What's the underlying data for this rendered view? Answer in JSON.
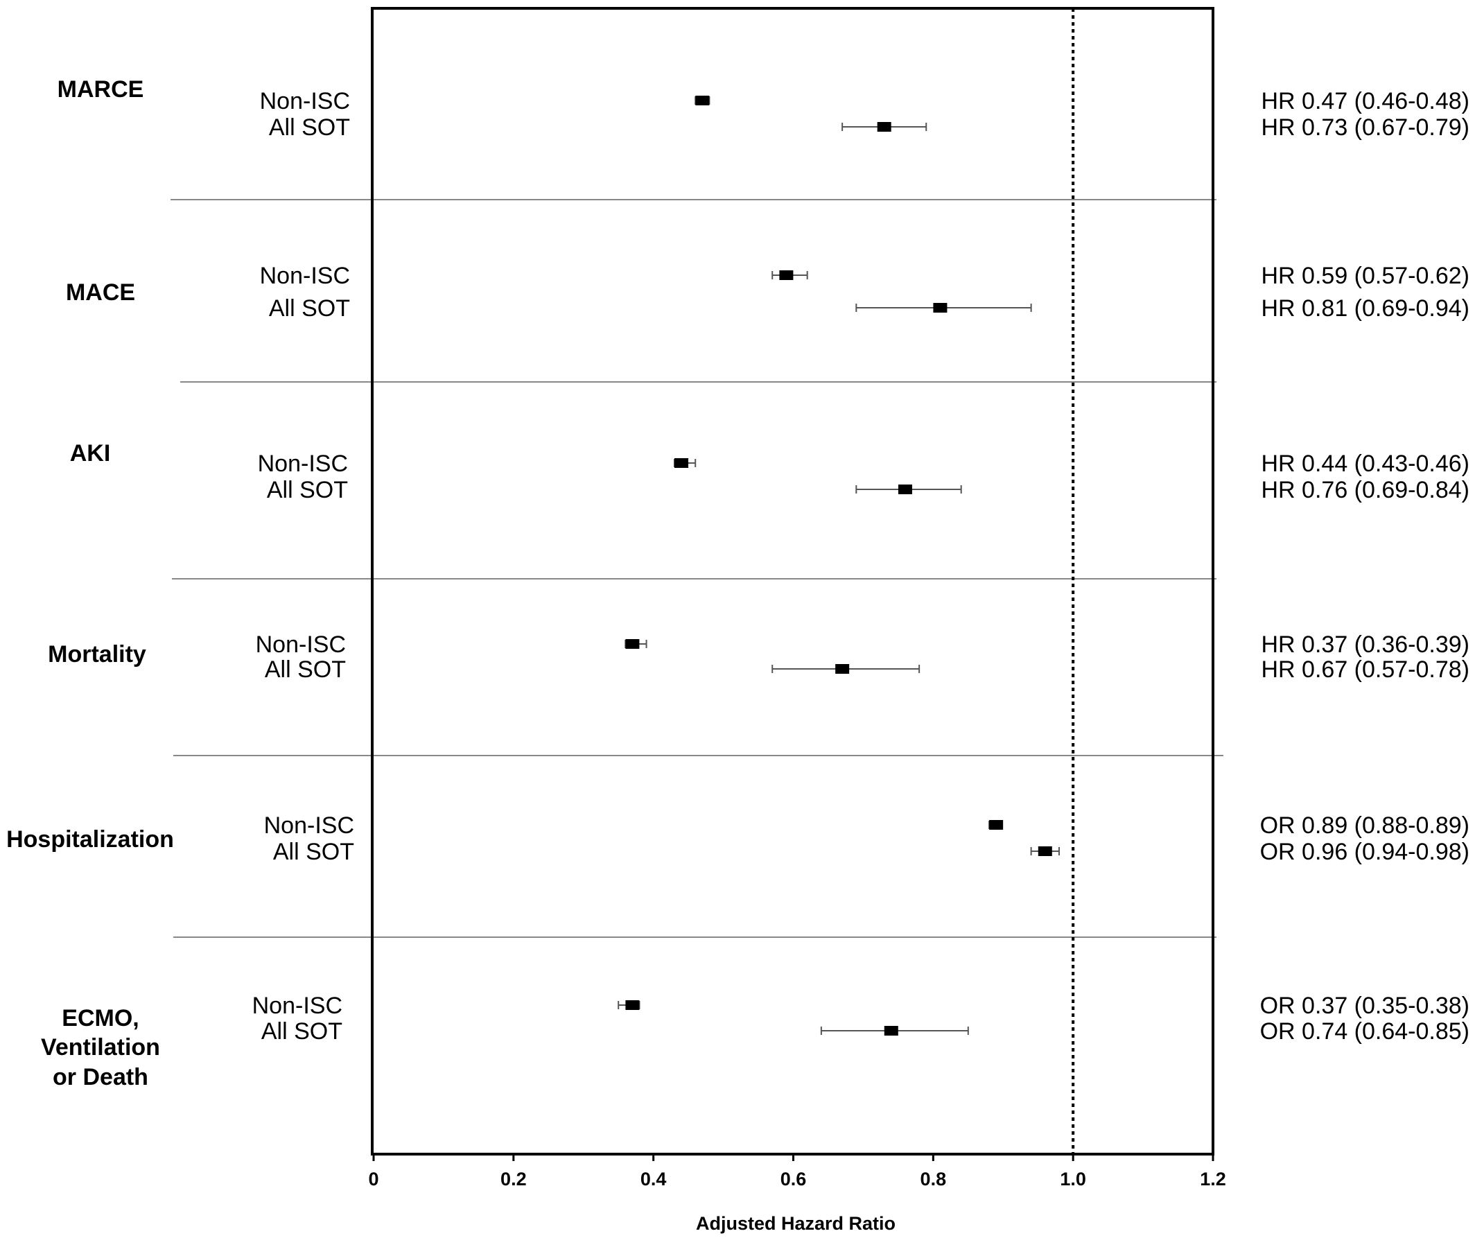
{
  "chart_data": {
    "type": "forest",
    "xlabel": "Adjusted Hazard Ratio",
    "xlim": [
      0,
      1.2
    ],
    "x_ticks": [
      "0",
      "0.2",
      "0.4",
      "0.6",
      "0.8",
      "1.0",
      "1.2"
    ],
    "reference_line": 1.0,
    "outcomes": [
      {
        "name": [
          "MARCE"
        ],
        "rows": [
          {
            "group": "Non-ISC",
            "measure": "HR",
            "value": 0.47,
            "lower": 0.46,
            "upper": 0.48,
            "label": "HR 0.47 (0.46-0.48)"
          },
          {
            "group": "All SOT",
            "measure": "HR",
            "value": 0.73,
            "lower": 0.67,
            "upper": 0.79,
            "label": "HR 0.73 (0.67-0.79)"
          }
        ]
      },
      {
        "name": [
          "MACE"
        ],
        "rows": [
          {
            "group": "Non-ISC",
            "measure": "HR",
            "value": 0.59,
            "lower": 0.57,
            "upper": 0.62,
            "label": "HR 0.59 (0.57-0.62)"
          },
          {
            "group": "All SOT",
            "measure": "HR",
            "value": 0.81,
            "lower": 0.69,
            "upper": 0.94,
            "label": "HR 0.81 (0.69-0.94)"
          }
        ]
      },
      {
        "name": [
          "AKI"
        ],
        "rows": [
          {
            "group": "Non-ISC",
            "measure": "HR",
            "value": 0.44,
            "lower": 0.43,
            "upper": 0.46,
            "label": "HR 0.44 (0.43-0.46)"
          },
          {
            "group": "All SOT",
            "measure": "HR",
            "value": 0.76,
            "lower": 0.69,
            "upper": 0.84,
            "label": "HR 0.76 (0.69-0.84)"
          }
        ]
      },
      {
        "name": [
          "Mortality"
        ],
        "rows": [
          {
            "group": "Non-ISC",
            "measure": "HR",
            "value": 0.37,
            "lower": 0.36,
            "upper": 0.39,
            "label": "HR 0.37 (0.36-0.39)"
          },
          {
            "group": "All SOT",
            "measure": "HR",
            "value": 0.67,
            "lower": 0.57,
            "upper": 0.78,
            "label": "HR 0.67 (0.57-0.78)"
          }
        ]
      },
      {
        "name": [
          "Hospitalization"
        ],
        "rows": [
          {
            "group": "Non-ISC",
            "measure": "OR",
            "value": 0.89,
            "lower": 0.88,
            "upper": 0.89,
            "label": "OR 0.89 (0.88-0.89)"
          },
          {
            "group": "All SOT",
            "measure": "OR",
            "value": 0.96,
            "lower": 0.94,
            "upper": 0.98,
            "label": "OR 0.96 (0.94-0.98)"
          }
        ]
      },
      {
        "name": [
          "ECMO,",
          "Ventilation",
          "or Death"
        ],
        "rows": [
          {
            "group": "Non-ISC",
            "measure": "OR",
            "value": 0.37,
            "lower": 0.35,
            "upper": 0.38,
            "label": "OR 0.37 (0.35-0.38)"
          },
          {
            "group": "All SOT",
            "measure": "OR",
            "value": 0.74,
            "lower": 0.64,
            "upper": 0.85,
            "label": "OR 0.74 (0.64-0.85)"
          }
        ]
      }
    ]
  }
}
